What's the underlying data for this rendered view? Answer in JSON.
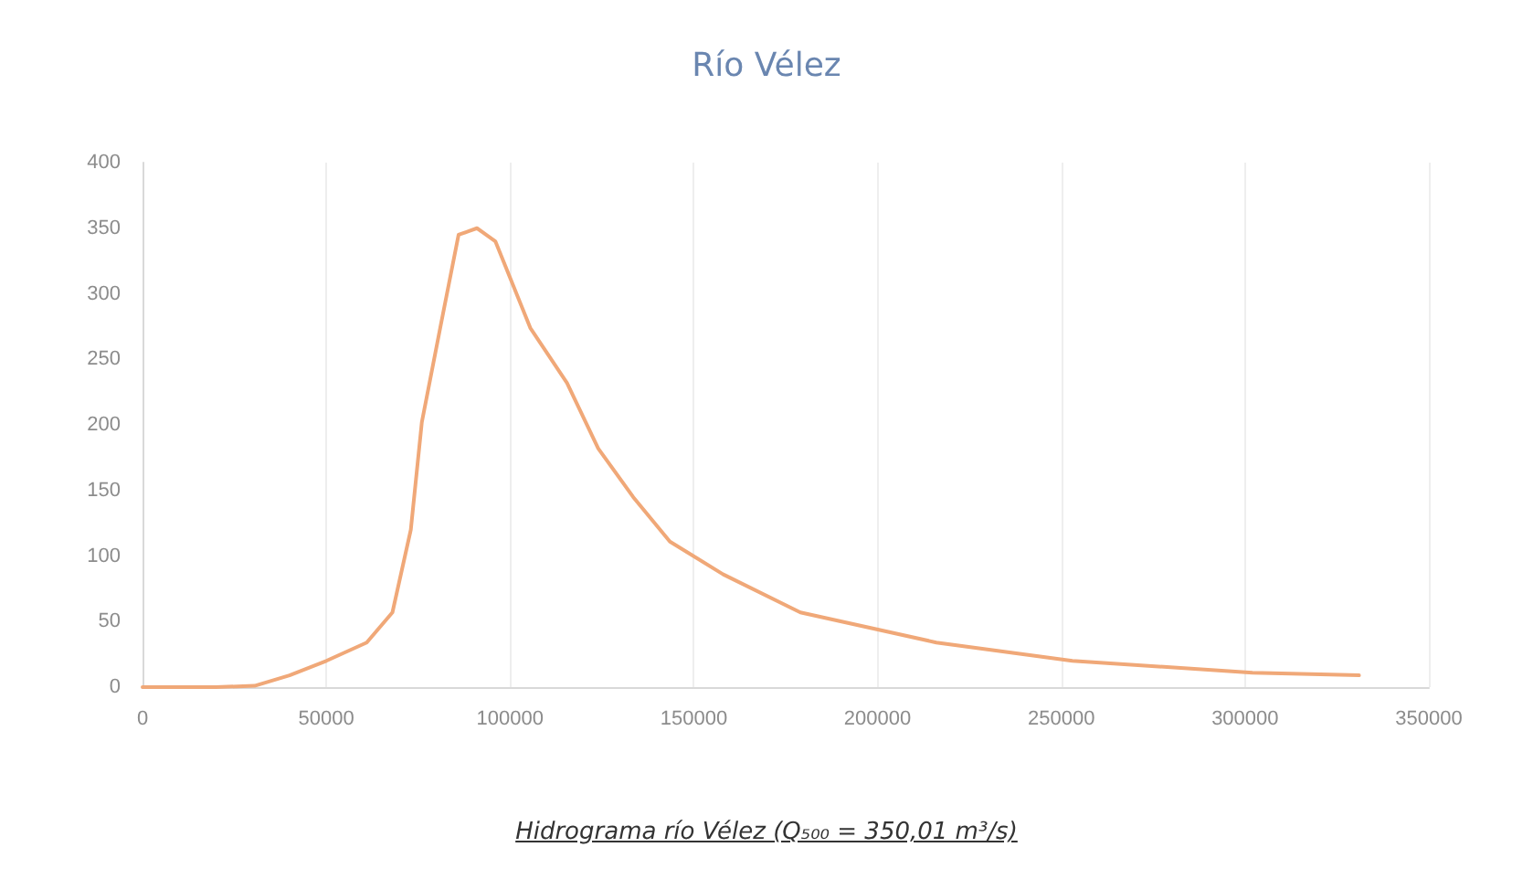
{
  "chart_data": {
    "type": "line",
    "title": "Río Vélez",
    "annotations": [
      "Hidrograma río Vélez (Q₅₀₀ = 350,01 m³/s)"
    ],
    "series": [
      {
        "color": "#f0a878",
        "x": [
          0,
          20000,
          30500,
          40000,
          50000,
          61000,
          68000,
          73000,
          76000,
          81000,
          86000,
          91000,
          96000,
          105500,
          115500,
          124000,
          133500,
          143500,
          158000,
          179000,
          216000,
          253000,
          302000,
          331000
        ],
        "values": [
          0,
          0,
          1,
          9,
          20,
          34,
          57,
          120,
          202,
          274,
          345,
          350,
          340,
          274,
          232,
          182,
          145,
          111,
          86,
          57,
          34,
          20,
          11,
          9
        ]
      }
    ],
    "xlim": [
      0,
      350000
    ],
    "xticks": [
      0,
      50000,
      100000,
      150000,
      200000,
      250000,
      300000,
      350000
    ],
    "ylim": [
      0,
      400
    ],
    "yticks": [
      0,
      50,
      100,
      150,
      200,
      250,
      300,
      350,
      400
    ],
    "grid": "x",
    "marker": "none",
    "line_style": "solid"
  }
}
